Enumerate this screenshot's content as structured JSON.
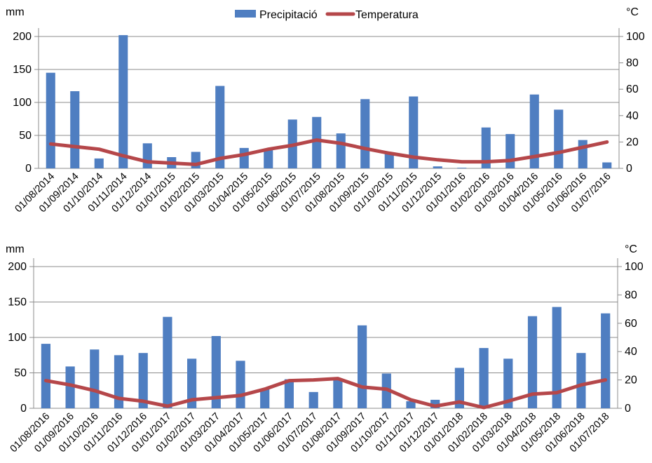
{
  "legend": {
    "precip_label": "Precipitació",
    "temp_label": "Temperatura"
  },
  "colors": {
    "bar": "#4f7ec1",
    "line": "#b5474a",
    "grid": "#8c8c8c"
  },
  "chart_data": [
    {
      "type": "bar",
      "left_unit": "mm",
      "right_unit": "°C",
      "ylim_left": [
        0,
        200
      ],
      "yticks_left": [
        "0",
        "50",
        "100",
        "150",
        "200"
      ],
      "ylim_right": [
        0,
        100
      ],
      "yticks_right": [
        "0",
        "20",
        "40",
        "60",
        "80",
        "100"
      ],
      "categories": [
        "01/08/2014",
        "01/09/2014",
        "01/10/2014",
        "01/11/2014",
        "01/12/2014",
        "01/01/2015",
        "01/02/2015",
        "01/03/2015",
        "01/04/2015",
        "01/05/2015",
        "01/06/2015",
        "01/07/2015",
        "01/08/2015",
        "01/09/2015",
        "01/10/2015",
        "01/11/2015",
        "01/12/2015",
        "01/01/2016",
        "01/02/2016",
        "01/03/2016",
        "01/04/2016",
        "01/05/2016",
        "01/06/2016",
        "01/07/2016"
      ],
      "series": [
        {
          "name": "Precipitació",
          "axis": "left",
          "kind": "bar",
          "values": [
            145,
            117,
            15,
            202,
            38,
            17,
            25,
            125,
            31,
            30,
            74,
            78,
            53,
            105,
            22,
            109,
            3,
            1,
            62,
            52,
            112,
            89,
            43,
            9
          ]
        },
        {
          "name": "Temperatura",
          "axis": "right",
          "kind": "line",
          "values": [
            18.5,
            16.5,
            14.5,
            9.5,
            5,
            4,
            3,
            7.5,
            10.5,
            14.5,
            17.5,
            21.5,
            19,
            15,
            11.5,
            8.5,
            6.5,
            5,
            5,
            6,
            9,
            12,
            16,
            20
          ]
        }
      ]
    },
    {
      "type": "bar",
      "left_unit": "mm",
      "right_unit": "°C",
      "ylim_left": [
        0,
        200
      ],
      "yticks_left": [
        "0",
        "50",
        "100",
        "150",
        "200"
      ],
      "ylim_right": [
        0,
        100
      ],
      "yticks_right": [
        "0",
        "20",
        "40",
        "60",
        "80",
        "100"
      ],
      "categories": [
        "01/08/2016",
        "01/09/2016",
        "01/10/2016",
        "01/11/2016",
        "01/12/2016",
        "01/01/2017",
        "01/02/2017",
        "01/03/2017",
        "01/04/2017",
        "01/05/2017",
        "01/06/2017",
        "01/07/2017",
        "01/08/2017",
        "01/09/2017",
        "01/10/2017",
        "01/11/2017",
        "01/12/2017",
        "01/01/2018",
        "01/02/2018",
        "01/03/2018",
        "01/04/2018",
        "01/05/2018",
        "01/06/2018",
        "01/07/2018"
      ],
      "series": [
        {
          "name": "Precipitació",
          "axis": "left",
          "kind": "bar",
          "values": [
            91,
            59,
            83,
            75,
            78,
            129,
            70,
            102,
            67,
            27,
            41,
            23,
            40,
            117,
            49,
            10,
            12,
            57,
            85,
            70,
            130,
            143,
            78,
            134
          ]
        },
        {
          "name": "Temperatura",
          "axis": "right",
          "kind": "line",
          "values": [
            19.5,
            16.5,
            12.5,
            7,
            5,
            1.5,
            6,
            7.5,
            9,
            13.5,
            19.5,
            20,
            21,
            15,
            13.5,
            6,
            1.5,
            4.5,
            0.5,
            5,
            10,
            11,
            16.5,
            20
          ]
        }
      ]
    }
  ]
}
